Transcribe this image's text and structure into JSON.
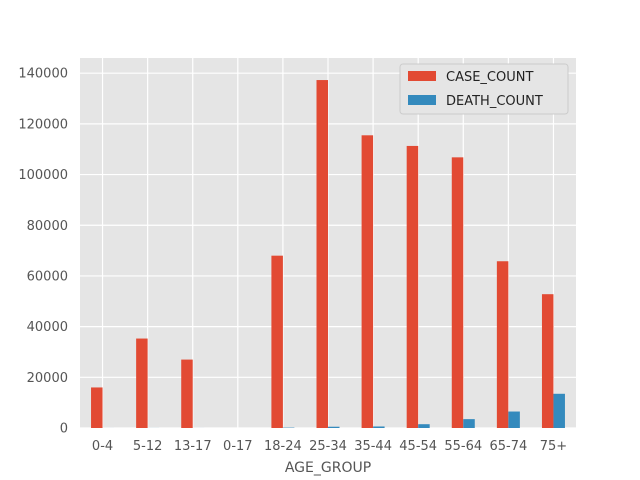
{
  "chart_data": {
    "type": "bar",
    "title": "",
    "xlabel": "AGE_GROUP",
    "ylabel": "",
    "categories": [
      "0-4",
      "5-12",
      "13-17",
      "0-17",
      "18-24",
      "25-34",
      "35-44",
      "45-54",
      "55-64",
      "65-74",
      "75+"
    ],
    "series": [
      {
        "name": "CASE_COUNT",
        "color": "#E24A33",
        "values": [
          16000,
          35300,
          27000,
          0,
          68000,
          137300,
          115500,
          111300,
          106800,
          65800,
          52800
        ]
      },
      {
        "name": "DEATH_COUNT",
        "color": "#348ABD",
        "values": [
          10,
          20,
          10,
          0,
          150,
          500,
          600,
          1500,
          3500,
          6500,
          13500
        ]
      }
    ],
    "ylim": [
      0,
      146000
    ],
    "yticks": [
      0,
      20000,
      40000,
      60000,
      80000,
      100000,
      120000,
      140000
    ],
    "grid": true,
    "legend_position": "top-right"
  }
}
